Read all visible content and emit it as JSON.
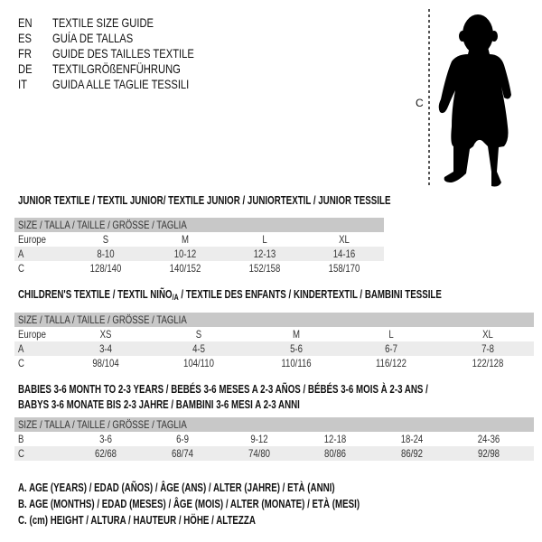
{
  "languages": [
    {
      "code": "EN",
      "title": "TEXTILE SIZE GUIDE"
    },
    {
      "code": "ES",
      "title": "GUÍA DE TALLAS"
    },
    {
      "code": "FR",
      "title": "GUIDE DES TAILLES TEXTILE"
    },
    {
      "code": "DE",
      "title": "TEXTILGRÖßENFÜHRUNG"
    },
    {
      "code": "IT",
      "title": "GUIDA ALLE TAGLIE TESSILI"
    }
  ],
  "figure": {
    "measure_label": "C",
    "silhouette": "child-silhouette-icon"
  },
  "tables": [
    {
      "title": "JUNIOR TEXTILE / TEXTIL JUNIOR/ TEXTILE JUNIOR / JUNIORTEXTIL / JUNIOR TESSILE",
      "header": "SIZE / TALLA / TAILLE / GRÖSSE / TAGLIA",
      "rows": [
        {
          "label": "Europe",
          "values": [
            "S",
            "M",
            "L",
            "XL"
          ]
        },
        {
          "label": "A",
          "values": [
            "8-10",
            "10-12",
            "12-13",
            "14-16"
          ]
        },
        {
          "label": "C",
          "values": [
            "128/140",
            "140/152",
            "152/158",
            "158/170"
          ]
        }
      ]
    },
    {
      "title": "CHILDREN'S TEXTILE / TEXTIL NIÑO/A / TEXTILE DES ENFANTS / KINDERTEXTIL / BAMBINI TESSILE",
      "header": "SIZE / TALLA / TAILLE / GRÖSSE / TAGLIA",
      "rows": [
        {
          "label": "Europe",
          "values": [
            "XS",
            "S",
            "M",
            "L",
            "XL"
          ]
        },
        {
          "label": "A",
          "values": [
            "3-4",
            "4-5",
            "5-6",
            "6-7",
            "7-8"
          ]
        },
        {
          "label": "C",
          "values": [
            "98/104",
            "104/110",
            "110/116",
            "116/122",
            "122/128"
          ]
        }
      ]
    },
    {
      "title": "BABIES 3-6 MONTH TO 2-3 YEARS / BEBÉS 3-6 MESES A 2-3 AÑOS / BÉBÉS 3-6 MOIS À 2-3 ANS /",
      "title_line2": "BABYS 3-6 MONATE BIS 2-3 JAHRE / BAMBINI 3-6 MESI A 2-3 ANNI",
      "header": "SIZE / TALLA / TAILLE / GRÖSSE / TAGLIA",
      "rows": [
        {
          "label": "B",
          "values": [
            "3-6",
            "6-9",
            "9-12",
            "12-18",
            "18-24",
            "24-36"
          ]
        },
        {
          "label": "C",
          "values": [
            "62/68",
            "68/74",
            "74/80",
            "80/86",
            "86/92",
            "92/98"
          ]
        }
      ]
    }
  ],
  "legend": [
    "A. AGE (YEARS) / EDAD (AÑOS) / ÂGE (ANS) / ALTER (JAHRE) / ETÀ (ANNI)",
    "B. AGE (MONTHS) / EDAD (MESES) / ÂGE (MOIS) / ALTER (MONATE) / ETÀ (MESI)",
    "C. (cm) HEIGHT / ALTURA / HAUTEUR / HÖHE / ALTEZZA"
  ],
  "colors": {
    "header_bg": "#c8c8c8",
    "stripe_bg": "#ececec",
    "text": "#111111"
  }
}
